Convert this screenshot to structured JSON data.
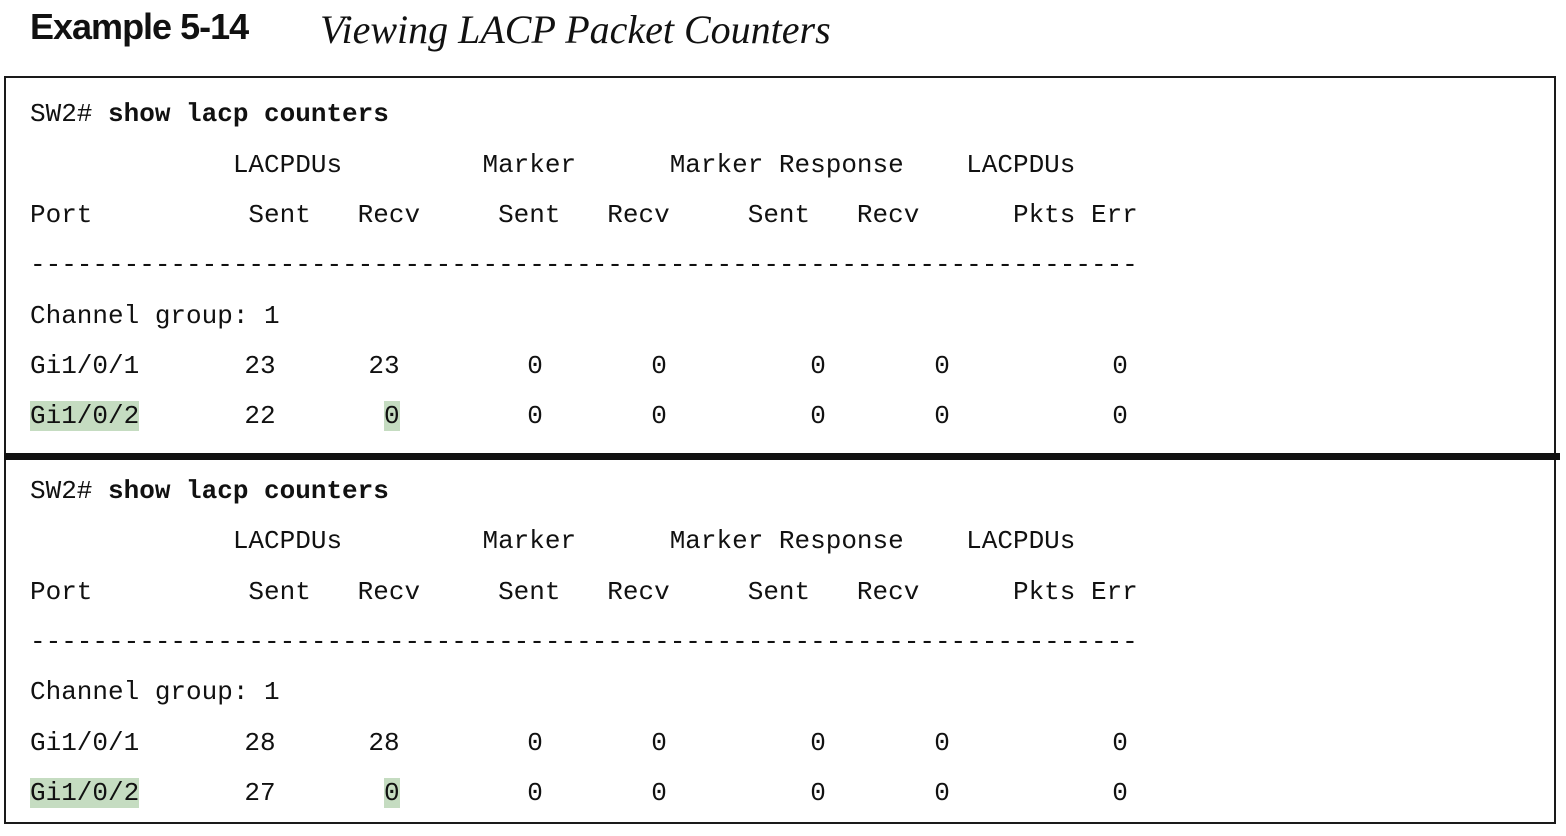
{
  "caption": {
    "label": "Example 5-14",
    "title": "Viewing LACP Packet Counters"
  },
  "blocks": [
    {
      "prompt": "SW2# ",
      "command": "show lacp counters",
      "header1": "             LACPDUs         Marker      Marker Response    LACPDUs",
      "header2": "Port          Sent   Recv     Sent   Recv     Sent   Recv      Pkts Err",
      "rule": "-----------------------------------------------------------------------",
      "group": "Channel group: 1",
      "rows": [
        {
          "port": "Gi1/0/1",
          "lacp_sent": "23",
          "lacp_recv": "23",
          "marker_sent": "0",
          "marker_recv": "0",
          "resp_sent": "0",
          "resp_recv": "0",
          "pkts_err": "0",
          "highlight": false
        },
        {
          "port": "Gi1/0/2",
          "lacp_sent": "22",
          "lacp_recv": "0",
          "marker_sent": "0",
          "marker_recv": "0",
          "resp_sent": "0",
          "resp_recv": "0",
          "pkts_err": "0",
          "highlight": true
        }
      ]
    },
    {
      "prompt": "SW2# ",
      "command": "show lacp counters",
      "header1": "             LACPDUs         Marker      Marker Response    LACPDUs",
      "header2": "Port          Sent   Recv     Sent   Recv     Sent   Recv      Pkts Err",
      "rule": "-----------------------------------------------------------------------",
      "group": "Channel group: 1",
      "rows": [
        {
          "port": "Gi1/0/1",
          "lacp_sent": "28",
          "lacp_recv": "28",
          "marker_sent": "0",
          "marker_recv": "0",
          "resp_sent": "0",
          "resp_recv": "0",
          "pkts_err": "0",
          "highlight": false
        },
        {
          "port": "Gi1/0/2",
          "lacp_sent": "27",
          "lacp_recv": "0",
          "marker_sent": "0",
          "marker_recv": "0",
          "resp_sent": "0",
          "resp_recv": "0",
          "pkts_err": "0",
          "highlight": true
        }
      ]
    }
  ],
  "colors": {
    "highlight": "#c5dcc1",
    "text": "#111111",
    "border": "#1a1a1a"
  }
}
